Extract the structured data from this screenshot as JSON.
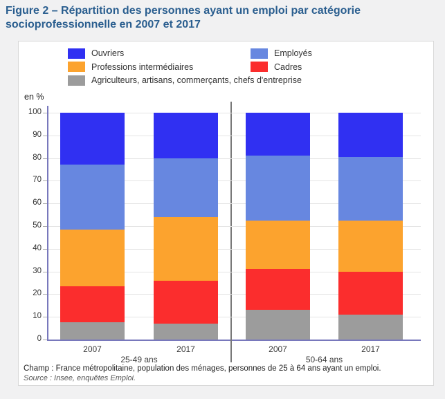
{
  "title": "Figure 2 – Répartition des personnes ayant un emploi par catégorie socioprofessionnelle en 2007 et 2017",
  "legend": {
    "items": [
      {
        "label": "Ouvriers",
        "color": "#3030F2",
        "row": 0,
        "col": 0
      },
      {
        "label": "Employés",
        "color": "#6787E0",
        "row": 0,
        "col": 1
      },
      {
        "label": "Professions intermédiaires",
        "color": "#FCA32E",
        "row": 1,
        "col": 0
      },
      {
        "label": "Cadres",
        "color": "#FB2D2D",
        "row": 1,
        "col": 1
      },
      {
        "label": "Agriculteurs, artisans, commerçants, chefs d'entreprise",
        "color": "#9C9C9C",
        "row": 2,
        "col": 0
      }
    ]
  },
  "chart_data": {
    "type": "bar",
    "stacked": true,
    "title": "Répartition des personnes ayant un emploi par catégorie socioprofessionnelle en 2007 et 2017",
    "ylabel": "en %",
    "xlabel": "",
    "ylim": [
      0,
      100
    ],
    "yticks": [
      0,
      10,
      20,
      30,
      40,
      50,
      60,
      70,
      80,
      90,
      100
    ],
    "grid": true,
    "legend_position": "top",
    "categories": [
      "2007",
      "2017",
      "2007",
      "2017"
    ],
    "group_labels": [
      "25-49 ans",
      "50-64 ans"
    ],
    "series": [
      {
        "name": "Agriculteurs, artisans, commerçants, chefs d'entreprise",
        "color": "#9C9C9C",
        "values": [
          7.5,
          7,
          13,
          11
        ]
      },
      {
        "name": "Cadres",
        "color": "#FB2D2D",
        "values": [
          16,
          19,
          18,
          19
        ]
      },
      {
        "name": "Professions intermédiaires",
        "color": "#FCA32E",
        "values": [
          25,
          28,
          21.5,
          22.5
        ]
      },
      {
        "name": "Employés",
        "color": "#6787E0",
        "values": [
          28.5,
          26,
          28.5,
          28
        ]
      },
      {
        "name": "Ouvriers",
        "color": "#3030F2",
        "values": [
          23,
          20,
          19,
          19.5
        ]
      }
    ]
  },
  "footer": {
    "champ": "Champ : France métropolitaine, population des ménages, personnes de 25 à 64 ans ayant un emploi.",
    "source": "Source : Insee, enquêtes Emploi."
  },
  "colors": {
    "title": "#2A5E8F",
    "axis": "#7878BC",
    "grid": "#E4E4E4",
    "separator": "#787878",
    "page_bg": "#F1F1F2",
    "panel_border": "#D8D8D8"
  }
}
